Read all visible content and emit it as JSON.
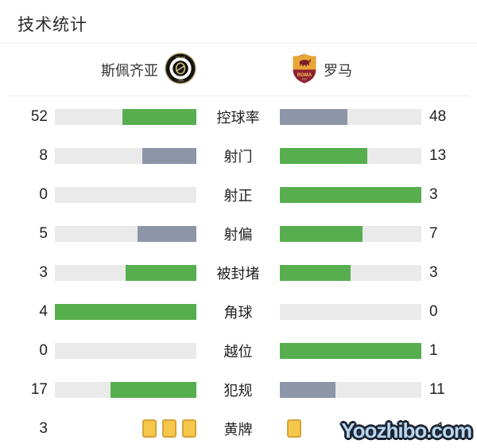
{
  "title": "技术统计",
  "header": {
    "home_team": "斯佩齐亚",
    "away_team": "罗马"
  },
  "watermark": "Yoozhibo.com",
  "colors": {
    "win": "#57ae4f",
    "lose": "#8d96a8",
    "track": "#eaeaea",
    "card_fill": "#f5c74b",
    "card_border": "#d7a23c"
  },
  "chart_data": {
    "type": "bar",
    "title": "技术统计",
    "teams": [
      "斯佩齐亚",
      "罗马"
    ],
    "legend_note": "left bars right-anchored, right bars left-anchored; winner green, loser gray",
    "rows": [
      {
        "label": "控球率",
        "home": "52",
        "away": "48",
        "home_pct": 52,
        "away_pct": 48,
        "home_state": "win",
        "away_state": "lose",
        "kind": "bar"
      },
      {
        "label": "射门",
        "home": "8",
        "away": "13",
        "home_pct": 38.1,
        "away_pct": 61.9,
        "home_state": "lose",
        "away_state": "win",
        "kind": "bar"
      },
      {
        "label": "射正",
        "home": "0",
        "away": "3",
        "home_pct": 0,
        "away_pct": 100,
        "home_state": "lose",
        "away_state": "win",
        "kind": "bar"
      },
      {
        "label": "射偏",
        "home": "5",
        "away": "7",
        "home_pct": 41.7,
        "away_pct": 58.3,
        "home_state": "lose",
        "away_state": "win",
        "kind": "bar"
      },
      {
        "label": "被封堵",
        "home": "3",
        "away": "3",
        "home_pct": 50,
        "away_pct": 50,
        "home_state": "win",
        "away_state": "win",
        "kind": "bar"
      },
      {
        "label": "角球",
        "home": "4",
        "away": "0",
        "home_pct": 100,
        "away_pct": 0,
        "home_state": "win",
        "away_state": "lose",
        "kind": "bar"
      },
      {
        "label": "越位",
        "home": "0",
        "away": "1",
        "home_pct": 0,
        "away_pct": 100,
        "home_state": "lose",
        "away_state": "win",
        "kind": "bar"
      },
      {
        "label": "犯规",
        "home": "17",
        "away": "11",
        "home_pct": 60.7,
        "away_pct": 39.3,
        "home_state": "win",
        "away_state": "lose",
        "kind": "bar"
      },
      {
        "label": "黄牌",
        "home": "3",
        "away": "1",
        "home_cards": 3,
        "away_cards": 1,
        "kind": "cards"
      }
    ]
  }
}
